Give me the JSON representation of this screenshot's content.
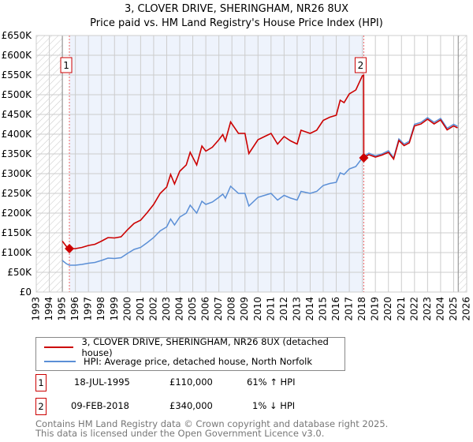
{
  "chart_data": {
    "type": "line",
    "title": "3, CLOVER DRIVE, SHERINGHAM, NR26 8UX",
    "subtitle": "Price paid vs. HM Land Registry's House Price Index (HPI)",
    "xlim": [
      1993,
      2026
    ],
    "ylim": [
      0,
      650000
    ],
    "grid": true,
    "x_ticks": [
      "1993",
      "1994",
      "1995",
      "1996",
      "1997",
      "1998",
      "1999",
      "2000",
      "2001",
      "2002",
      "2003",
      "2004",
      "2005",
      "2006",
      "2007",
      "2008",
      "2009",
      "2010",
      "2011",
      "2012",
      "2013",
      "2014",
      "2015",
      "2016",
      "2017",
      "2018",
      "2019",
      "2020",
      "2021",
      "2022",
      "2023",
      "2024",
      "2025",
      "2026"
    ],
    "y_ticks": [
      {
        "v": 0,
        "label": "£0"
      },
      {
        "v": 50000,
        "label": "£50K"
      },
      {
        "v": 100000,
        "label": "£100K"
      },
      {
        "v": 150000,
        "label": "£150K"
      },
      {
        "v": 200000,
        "label": "£200K"
      },
      {
        "v": 250000,
        "label": "£250K"
      },
      {
        "v": 300000,
        "label": "£300K"
      },
      {
        "v": 350000,
        "label": "£350K"
      },
      {
        "v": 400000,
        "label": "£400K"
      },
      {
        "v": 450000,
        "label": "£450K"
      },
      {
        "v": 500000,
        "label": "£500K"
      },
      {
        "v": 550000,
        "label": "£550K"
      },
      {
        "v": 600000,
        "label": "£600K"
      },
      {
        "v": 650000,
        "label": "£650K"
      }
    ],
    "data_range": [
      1995.0,
      2025.35
    ],
    "series": [
      {
        "name": "3, CLOVER DRIVE, SHERINGHAM, NR26 8UX (detached house)",
        "color": "#cc0000",
        "points": [
          [
            1995.0,
            129
          ],
          [
            1995.3,
            116
          ],
          [
            1995.54,
            110
          ],
          [
            1996,
            110
          ],
          [
            1996.5,
            113
          ],
          [
            1997,
            118
          ],
          [
            1997.5,
            121
          ],
          [
            1998,
            129
          ],
          [
            1998.5,
            138
          ],
          [
            1999,
            137
          ],
          [
            1999.5,
            140
          ],
          [
            2000,
            158
          ],
          [
            2000.5,
            174
          ],
          [
            2001,
            182
          ],
          [
            2001.5,
            201
          ],
          [
            2002,
            222
          ],
          [
            2002.5,
            250
          ],
          [
            2003,
            266
          ],
          [
            2003.3,
            298
          ],
          [
            2003.6,
            274
          ],
          [
            2004,
            306
          ],
          [
            2004.5,
            322
          ],
          [
            2004.8,
            354
          ],
          [
            2005.3,
            322
          ],
          [
            2005.7,
            370
          ],
          [
            2006,
            357
          ],
          [
            2006.5,
            367
          ],
          [
            2007,
            386
          ],
          [
            2007.3,
            399
          ],
          [
            2007.5,
            383
          ],
          [
            2007.9,
            431
          ],
          [
            2008.5,
            402
          ],
          [
            2009,
            402
          ],
          [
            2009.3,
            351
          ],
          [
            2010,
            386
          ],
          [
            2010.5,
            394
          ],
          [
            2011,
            402
          ],
          [
            2011.5,
            375
          ],
          [
            2012,
            394
          ],
          [
            2012.5,
            383
          ],
          [
            2013,
            375
          ],
          [
            2013.3,
            410
          ],
          [
            2014,
            402
          ],
          [
            2014.5,
            410
          ],
          [
            2015,
            435
          ],
          [
            2015.5,
            443
          ],
          [
            2016,
            448
          ],
          [
            2016.3,
            486
          ],
          [
            2016.6,
            480
          ],
          [
            2017,
            502
          ],
          [
            2017.5,
            512
          ],
          [
            2018.0,
            548
          ],
          [
            2018.1,
            549
          ],
          [
            2018.11,
            340
          ],
          [
            2018.5,
            348
          ],
          [
            2019,
            342
          ],
          [
            2019.5,
            347
          ],
          [
            2020,
            354
          ],
          [
            2020.4,
            337
          ],
          [
            2020.8,
            384
          ],
          [
            2021.2,
            371
          ],
          [
            2021.6,
            378
          ],
          [
            2022,
            421
          ],
          [
            2022.5,
            426
          ],
          [
            2023,
            438
          ],
          [
            2023.5,
            426
          ],
          [
            2024,
            436
          ],
          [
            2024.5,
            411
          ],
          [
            2025,
            421
          ],
          [
            2025.3,
            416
          ]
        ]
      },
      {
        "name": "HPI: Average price, detached house, North Norfolk",
        "color": "#5b8fd6",
        "points": [
          [
            1995.0,
            80
          ],
          [
            1995.3,
            72
          ],
          [
            1995.54,
            68
          ],
          [
            1996,
            68
          ],
          [
            1996.5,
            70
          ],
          [
            1997,
            73
          ],
          [
            1997.5,
            75
          ],
          [
            1998,
            80
          ],
          [
            1998.5,
            86
          ],
          [
            1999,
            85
          ],
          [
            1999.5,
            87
          ],
          [
            2000,
            98
          ],
          [
            2000.5,
            108
          ],
          [
            2001,
            113
          ],
          [
            2001.5,
            125
          ],
          [
            2002,
            138
          ],
          [
            2002.5,
            155
          ],
          [
            2003,
            165
          ],
          [
            2003.3,
            185
          ],
          [
            2003.6,
            170
          ],
          [
            2004,
            190
          ],
          [
            2004.5,
            200
          ],
          [
            2004.8,
            220
          ],
          [
            2005.3,
            200
          ],
          [
            2005.7,
            230
          ],
          [
            2006,
            222
          ],
          [
            2006.5,
            228
          ],
          [
            2007,
            240
          ],
          [
            2007.3,
            248
          ],
          [
            2007.5,
            238
          ],
          [
            2007.9,
            268
          ],
          [
            2008.5,
            250
          ],
          [
            2009,
            250
          ],
          [
            2009.3,
            218
          ],
          [
            2010,
            240
          ],
          [
            2010.5,
            245
          ],
          [
            2011,
            250
          ],
          [
            2011.5,
            233
          ],
          [
            2012,
            245
          ],
          [
            2012.5,
            238
          ],
          [
            2013,
            233
          ],
          [
            2013.3,
            255
          ],
          [
            2014,
            250
          ],
          [
            2014.5,
            255
          ],
          [
            2015,
            270
          ],
          [
            2015.5,
            275
          ],
          [
            2016,
            278
          ],
          [
            2016.3,
            302
          ],
          [
            2016.6,
            298
          ],
          [
            2017,
            312
          ],
          [
            2017.5,
            318
          ],
          [
            2018.0,
            340
          ],
          [
            2018.11,
            343
          ],
          [
            2018.5,
            352
          ],
          [
            2019,
            345
          ],
          [
            2019.5,
            350
          ],
          [
            2020,
            358
          ],
          [
            2020.4,
            340
          ],
          [
            2020.8,
            388
          ],
          [
            2021.2,
            375
          ],
          [
            2021.6,
            382
          ],
          [
            2022,
            425
          ],
          [
            2022.5,
            430
          ],
          [
            2023,
            442
          ],
          [
            2023.5,
            430
          ],
          [
            2024,
            440
          ],
          [
            2024.5,
            415
          ],
          [
            2025,
            425
          ],
          [
            2025.3,
            420
          ]
        ]
      }
    ],
    "y_units": "thousands GBP",
    "sales": [
      {
        "id": "1",
        "x": 1995.54,
        "value": 110000,
        "date": "18-JUL-1995",
        "price": "£110,000",
        "hpi": "61% ↑ HPI"
      },
      {
        "id": "2",
        "x": 2018.11,
        "value": 340000,
        "date": "09-FEB-2018",
        "price": "£340,000",
        "hpi": "1% ↓ HPI"
      }
    ],
    "legend": "below"
  },
  "footer": [
    "Contains HM Land Registry data © Crown copyright and database right 2025.",
    "This data is licensed under the Open Government Licence v3.0."
  ]
}
